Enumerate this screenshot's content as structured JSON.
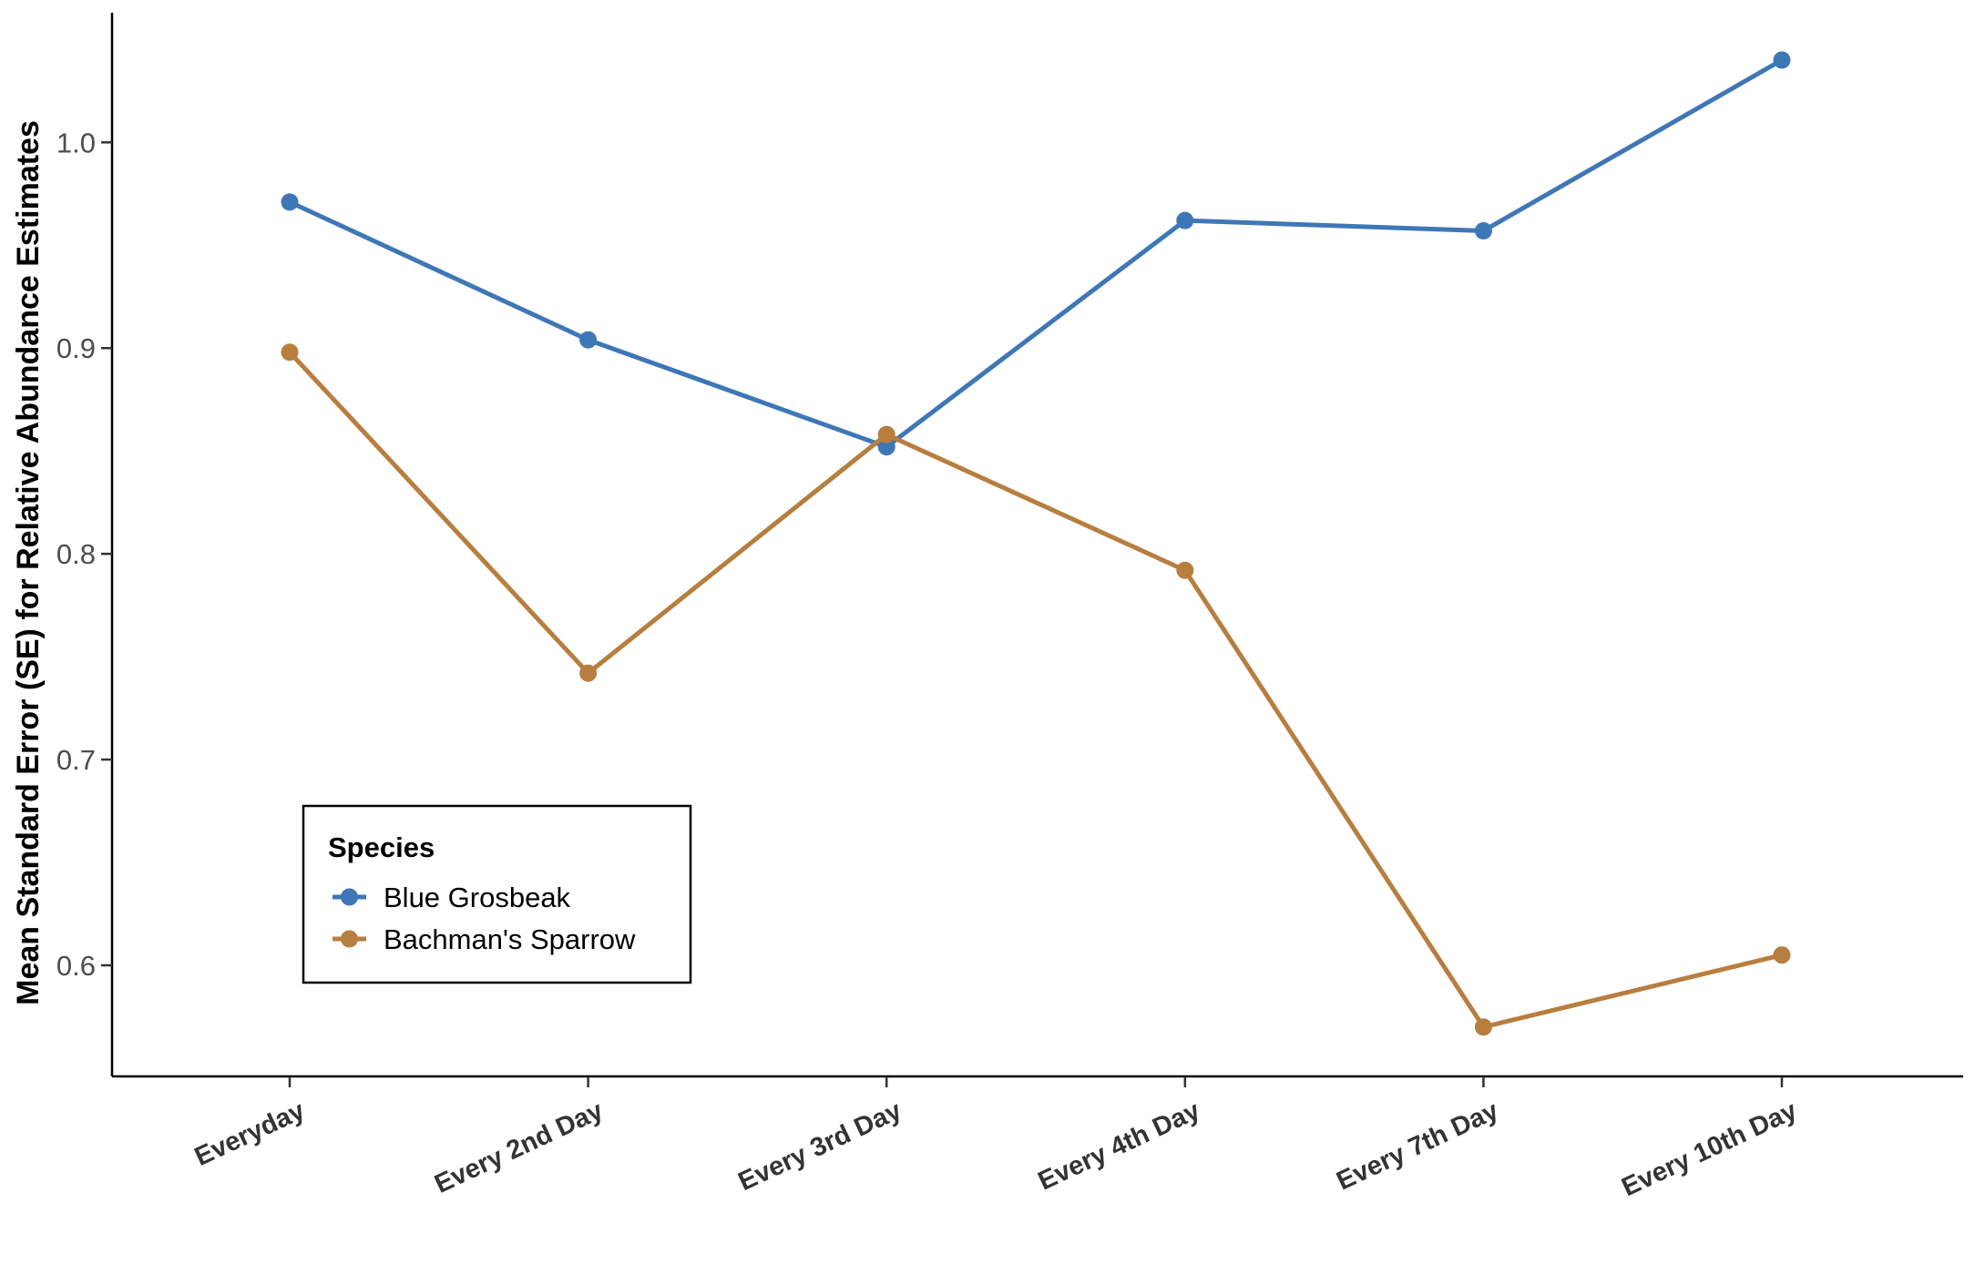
{
  "chart_data": {
    "type": "line",
    "categories": [
      "Everyday",
      "Every 2nd Day",
      "Every 3rd Day",
      "Every 4th Day",
      "Every 7th Day",
      "Every 10th Day"
    ],
    "series": [
      {
        "name": "Blue Grosbeak",
        "color": "#3E77B6",
        "values": [
          0.971,
          0.904,
          0.852,
          0.962,
          0.957,
          1.04
        ]
      },
      {
        "name": "Bachman's Sparrow",
        "color": "#B77E3F",
        "values": [
          0.898,
          0.742,
          0.858,
          0.792,
          0.57,
          0.605
        ]
      }
    ],
    "title": "",
    "xlabel": "",
    "ylabel": "Mean Standard Error (SE) for Relative Abundance Estimates",
    "ylim": [
      0.546,
      1.063
    ],
    "yticks": [
      "0.6",
      "0.7",
      "0.8",
      "0.9",
      "1.0"
    ],
    "grid": false,
    "legend": {
      "title": "Species",
      "placement": "bottom-left"
    }
  }
}
